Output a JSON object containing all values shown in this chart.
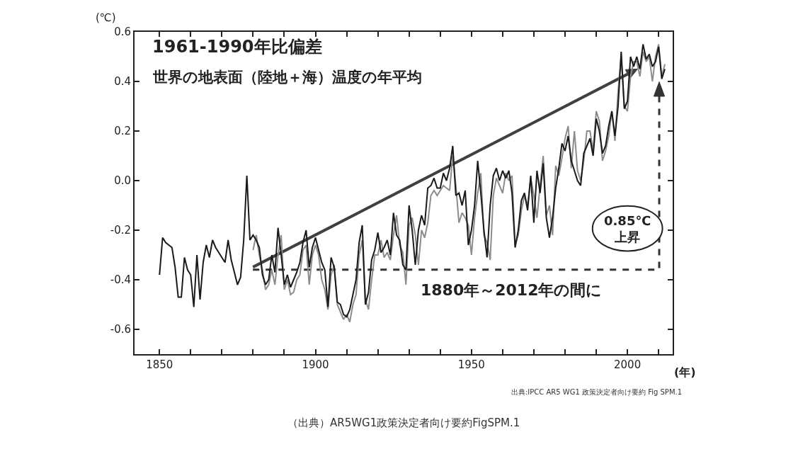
{
  "chart_data": {
    "type": "line",
    "title": "1961-1990年比偏差",
    "subtitle": "世界の地表面（陸地＋海）温度の年平均",
    "ylabel": "(℃)",
    "xlabel": "(年)",
    "annotations": [
      "1880年～2012年の間に",
      "0.85℃\n上昇",
      "出典:IPCC AR5 WG1 政策決定者向け要約 Fig SPM.1",
      "（出典）AR5WG1政策決定者向け要約FigSPM.1"
    ],
    "x": [
      1850,
      1851,
      1852,
      1853,
      1854,
      1855,
      1856,
      1857,
      1858,
      1859,
      1860,
      1861,
      1862,
      1863,
      1864,
      1865,
      1866,
      1867,
      1868,
      1869,
      1870,
      1871,
      1872,
      1873,
      1874,
      1875,
      1876,
      1877,
      1878,
      1879,
      1880,
      1881,
      1882,
      1883,
      1884,
      1885,
      1886,
      1887,
      1888,
      1889,
      1890,
      1891,
      1892,
      1893,
      1894,
      1895,
      1896,
      1897,
      1898,
      1899,
      1900,
      1901,
      1902,
      1903,
      1904,
      1905,
      1906,
      1907,
      1908,
      1909,
      1910,
      1911,
      1912,
      1913,
      1914,
      1915,
      1916,
      1917,
      1918,
      1919,
      1920,
      1921,
      1922,
      1923,
      1924,
      1925,
      1926,
      1927,
      1928,
      1929,
      1930,
      1931,
      1932,
      1933,
      1934,
      1935,
      1936,
      1937,
      1938,
      1939,
      1940,
      1941,
      1942,
      1943,
      1944,
      1945,
      1946,
      1947,
      1948,
      1949,
      1950,
      1951,
      1952,
      1953,
      1954,
      1955,
      1956,
      1957,
      1958,
      1959,
      1960,
      1961,
      1962,
      1963,
      1964,
      1965,
      1966,
      1967,
      1968,
      1969,
      1970,
      1971,
      1972,
      1973,
      1974,
      1975,
      1976,
      1977,
      1978,
      1979,
      1980,
      1981,
      1982,
      1983,
      1984,
      1985,
      1986,
      1987,
      1988,
      1989,
      1990,
      1991,
      1992,
      1993,
      1994,
      1995,
      1996,
      1997,
      1998,
      1999,
      2000,
      2001,
      2002,
      2003,
      2004,
      2005,
      2006,
      2007,
      2008,
      2009,
      2010,
      2011,
      2012
    ],
    "series": [
      {
        "color": "#8c8c8c",
        "values": [
          null,
          null,
          null,
          null,
          null,
          null,
          null,
          null,
          null,
          null,
          null,
          null,
          null,
          null,
          null,
          null,
          null,
          null,
          null,
          null,
          null,
          null,
          null,
          null,
          null,
          null,
          null,
          null,
          null,
          null,
          -0.28,
          -0.22,
          -0.3,
          -0.36,
          -0.44,
          -0.42,
          -0.36,
          -0.42,
          -0.3,
          -0.22,
          -0.44,
          -0.4,
          -0.46,
          -0.45,
          -0.4,
          -0.38,
          -0.28,
          -0.26,
          -0.42,
          -0.3,
          -0.26,
          -0.3,
          -0.4,
          -0.44,
          -0.52,
          -0.38,
          -0.34,
          -0.5,
          -0.53,
          -0.56,
          -0.54,
          -0.57,
          -0.5,
          -0.46,
          -0.3,
          -0.24,
          -0.48,
          -0.52,
          -0.4,
          -0.3,
          -0.3,
          -0.24,
          -0.31,
          -0.29,
          -0.32,
          -0.22,
          -0.14,
          -0.26,
          -0.29,
          -0.42,
          -0.18,
          -0.15,
          -0.22,
          -0.34,
          -0.2,
          -0.23,
          -0.17,
          -0.06,
          -0.04,
          -0.06,
          -0.04,
          -0.02,
          -0.03,
          -0.04,
          0.1,
          -0.02,
          -0.17,
          -0.13,
          -0.15,
          -0.18,
          -0.3,
          -0.15,
          -0.05,
          0.03,
          -0.22,
          -0.25,
          -0.32,
          -0.06,
          0.01,
          -0.02,
          -0.05,
          0.03,
          0.0,
          0.02,
          -0.26,
          -0.22,
          -0.12,
          -0.06,
          -0.1,
          0.01,
          -0.06,
          -0.15,
          -0.02,
          0.1,
          -0.14,
          -0.1,
          -0.22,
          0.06,
          0.02,
          0.09,
          0.17,
          0.22,
          0.05,
          0.2,
          0.04,
          0.0,
          0.08,
          0.2,
          0.2,
          0.12,
          0.28,
          0.24,
          0.08,
          0.12,
          0.18,
          0.28,
          0.16,
          0.36,
          0.5,
          0.3,
          0.28,
          0.42,
          0.48,
          0.48,
          0.42,
          0.52,
          0.48,
          0.5,
          0.4,
          0.5,
          0.55,
          0.42,
          0.47
        ]
      },
      {
        "color": "#1a1a1a",
        "values": [
          -0.38,
          -0.23,
          -0.25,
          -0.26,
          -0.27,
          -0.35,
          -0.47,
          -0.47,
          -0.31,
          -0.36,
          -0.38,
          -0.51,
          -0.3,
          -0.48,
          -0.33,
          -0.26,
          -0.31,
          -0.24,
          -0.27,
          -0.29,
          -0.31,
          -0.33,
          -0.24,
          -0.32,
          -0.37,
          -0.42,
          -0.39,
          -0.24,
          0.02,
          -0.24,
          -0.22,
          -0.24,
          -0.27,
          -0.38,
          -0.42,
          -0.4,
          -0.3,
          -0.37,
          -0.19,
          -0.3,
          -0.42,
          -0.38,
          -0.43,
          -0.4,
          -0.37,
          -0.33,
          -0.25,
          -0.2,
          -0.35,
          -0.27,
          -0.23,
          -0.28,
          -0.33,
          -0.36,
          -0.51,
          -0.31,
          -0.35,
          -0.49,
          -0.5,
          -0.54,
          -0.55,
          -0.52,
          -0.46,
          -0.4,
          -0.25,
          -0.18,
          -0.5,
          -0.45,
          -0.32,
          -0.28,
          -0.21,
          -0.29,
          -0.27,
          -0.24,
          -0.3,
          -0.13,
          -0.22,
          -0.24,
          -0.34,
          -0.36,
          -0.1,
          -0.2,
          -0.34,
          -0.2,
          -0.14,
          -0.18,
          -0.03,
          -0.02,
          0.01,
          -0.03,
          -0.03,
          0.03,
          0.0,
          0.05,
          0.14,
          -0.06,
          -0.05,
          -0.1,
          -0.04,
          -0.26,
          -0.2,
          -0.1,
          0.08,
          -0.05,
          -0.2,
          -0.31,
          -0.1,
          0.02,
          0.05,
          0.0,
          0.04,
          0.01,
          0.04,
          -0.05,
          -0.27,
          -0.2,
          -0.08,
          -0.05,
          -0.12,
          0.02,
          -0.17,
          0.04,
          -0.05,
          0.07,
          -0.15,
          -0.23,
          -0.15,
          -0.03,
          0.05,
          0.15,
          0.12,
          0.18,
          0.08,
          0.04,
          0.0,
          -0.02,
          0.11,
          0.14,
          0.17,
          0.1,
          0.25,
          0.2,
          0.11,
          0.14,
          0.22,
          0.28,
          0.18,
          0.3,
          0.52,
          0.29,
          0.32,
          0.5,
          0.46,
          0.5,
          0.45,
          0.55,
          0.49,
          0.51,
          0.46,
          0.48,
          0.54,
          0.41,
          0.45
        ]
      }
    ],
    "xlim": [
      1842,
      2014.5
    ],
    "ylim": [
      -0.7,
      0.6
    ],
    "xticks": [
      1850,
      {
        "value": 1860,
        "label": null
      },
      {
        "value": 1870,
        "label": null
      },
      {
        "value": 1880,
        "label": null
      },
      {
        "value": 1890,
        "label": null
      },
      1900,
      {
        "value": 1910,
        "label": null
      },
      {
        "value": 1920,
        "label": null
      },
      {
        "value": 1930,
        "label": null
      },
      {
        "value": 1940,
        "label": null
      },
      1950,
      {
        "value": 1960,
        "label": null
      },
      {
        "value": 1970,
        "label": null
      },
      {
        "value": 1980,
        "label": null
      },
      {
        "value": 1990,
        "label": null
      },
      2000,
      {
        "value": 2010,
        "label": null
      }
    ],
    "yticks": [
      -0.6,
      -0.4,
      -0.2,
      {
        "value": 0,
        "label": "0.0"
      },
      0.2,
      0.4,
      0.6
    ],
    "marker": "none",
    "line_style": "solid",
    "grid": false
  }
}
